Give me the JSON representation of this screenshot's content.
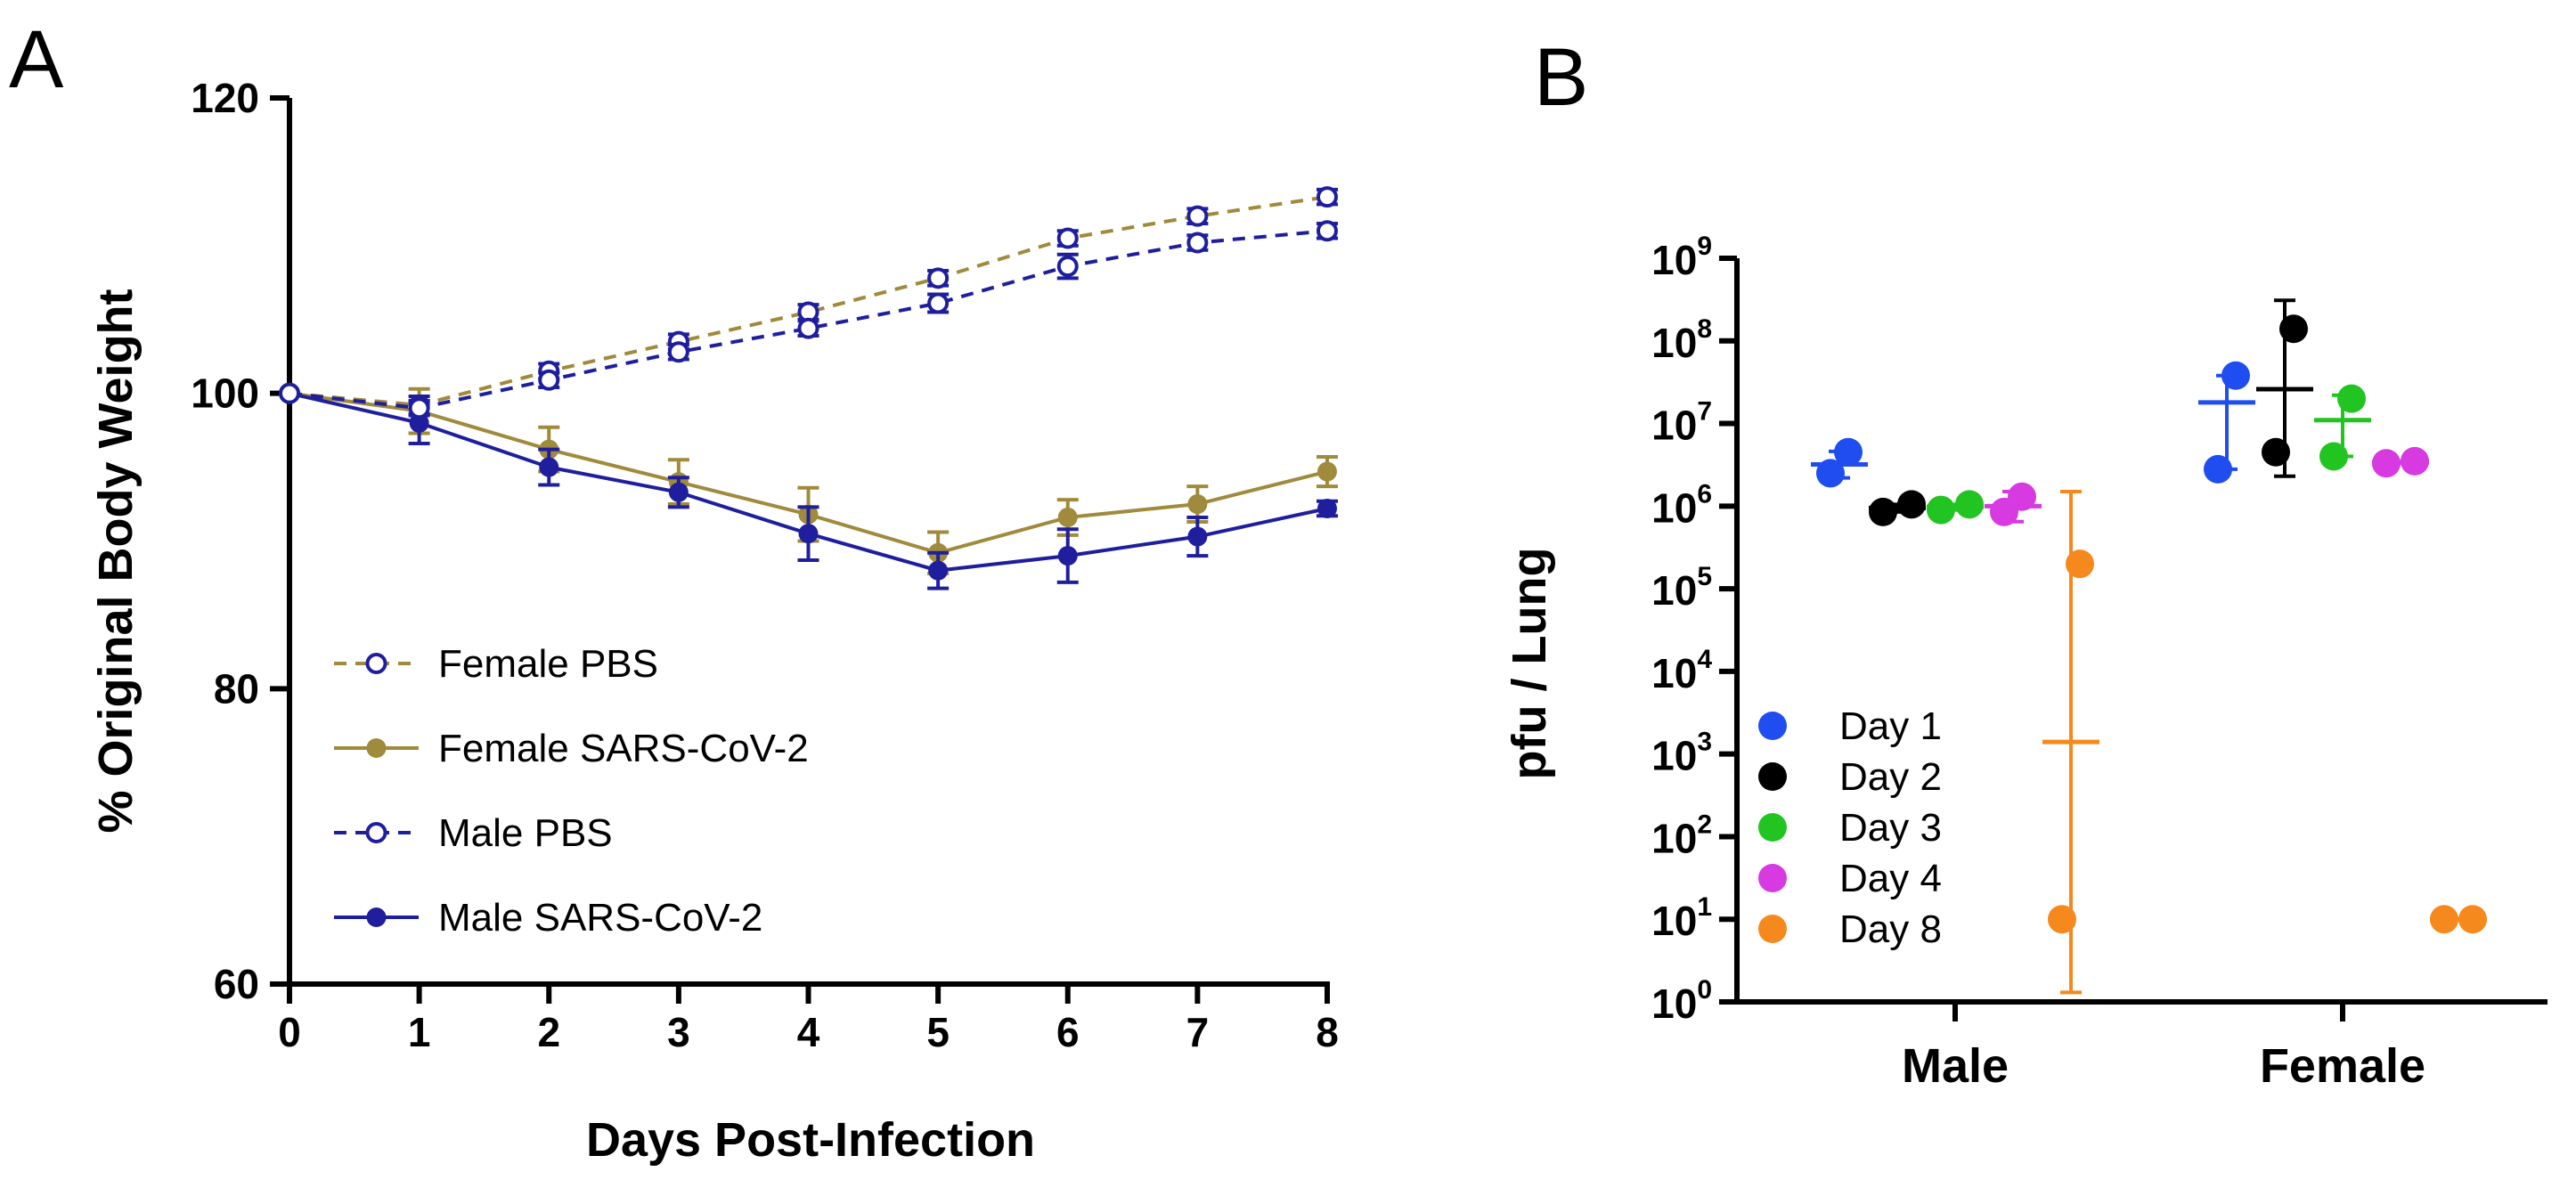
{
  "panels": {
    "a": {
      "letter": "A"
    },
    "b": {
      "letter": "B"
    }
  },
  "chart_data": [
    {
      "type": "line",
      "panel": "A",
      "title": "",
      "xlabel": "Days Post-Infection",
      "ylabel": "% Original Body Weight",
      "xlim": [
        0,
        8
      ],
      "ylim": [
        60,
        120
      ],
      "x_ticks": [
        0,
        1,
        2,
        3,
        4,
        5,
        6,
        7,
        8
      ],
      "y_ticks": [
        60,
        80,
        100,
        120
      ],
      "legend_position": "lower-left",
      "series": [
        {
          "name": "Female PBS",
          "color": "#a08a3c",
          "marker_color": "#1f1f9e",
          "style": "dashed",
          "marker": "open-circle",
          "x": [
            0,
            1,
            2,
            3,
            4,
            5,
            6,
            7,
            8
          ],
          "values": [
            100,
            99.2,
            101.5,
            103.5,
            105.5,
            107.8,
            110.5,
            112,
            113.3
          ],
          "errors": [
            0,
            0.6,
            0.5,
            0.5,
            0.5,
            0.5,
            0.5,
            0.5,
            0.5
          ]
        },
        {
          "name": "Female SARS-CoV-2",
          "color": "#a08a3c",
          "marker_color": "#a08a3c",
          "style": "solid",
          "marker": "filled-circle",
          "x": [
            0,
            1,
            2,
            3,
            4,
            5,
            6,
            7,
            8
          ],
          "values": [
            100,
            98.8,
            96.2,
            94,
            91.8,
            89.2,
            91.6,
            92.5,
            94.7
          ],
          "errors": [
            0,
            1.5,
            1.5,
            1.5,
            1.8,
            1.4,
            1.2,
            1.2,
            1.0
          ]
        },
        {
          "name": "Male PBS",
          "color": "#1f1f9e",
          "marker_color": "#1f1f9e",
          "style": "dashed",
          "marker": "open-circle",
          "x": [
            0,
            1,
            2,
            3,
            4,
            5,
            6,
            7,
            8
          ],
          "values": [
            100,
            99,
            100.9,
            102.8,
            104.4,
            106.1,
            108.6,
            110.2,
            111
          ],
          "errors": [
            0,
            0.5,
            0.5,
            0.5,
            0.5,
            0.6,
            0.8,
            0.5,
            0.5
          ]
        },
        {
          "name": "Male SARS-CoV-2",
          "color": "#1f1f9e",
          "marker_color": "#1f1f9e",
          "style": "solid",
          "marker": "filled-circle",
          "x": [
            0,
            1,
            2,
            3,
            4,
            5,
            6,
            7,
            8
          ],
          "values": [
            100,
            98,
            95,
            93.3,
            90.5,
            88,
            89,
            90.3,
            92.2
          ],
          "errors": [
            0,
            1.4,
            1.2,
            1.0,
            1.8,
            1.2,
            1.8,
            1.3,
            0.5
          ]
        }
      ]
    },
    {
      "type": "scatter",
      "panel": "B",
      "title": "",
      "xlabel": "",
      "ylabel": "pfu / Lung",
      "y_scale": "log10",
      "ylim_exp": [
        0,
        9
      ],
      "y_tick_base": "10",
      "y_tick_exponents": [
        0,
        1,
        2,
        3,
        4,
        5,
        6,
        7,
        8,
        9
      ],
      "categories": [
        "Male",
        "Female"
      ],
      "legend_position": "lower-left",
      "series": [
        {
          "name": "Day 1",
          "color": "#1f4df0",
          "points": [
            {
              "group": "Male",
              "values": [
                2500000.0,
                4500000.0
              ],
              "mean": 3200000.0,
              "err_low": 2200000.0,
              "err_high": 4600000.0
            },
            {
              "group": "Female",
              "values": [
                2800000.0,
                38000000.0
              ],
              "mean": 18000000.0,
              "err_low": 2800000.0,
              "err_high": 38000000.0
            }
          ]
        },
        {
          "name": "Day 2",
          "color": "#000000",
          "points": [
            {
              "group": "Male",
              "values": [
                850000.0,
                1050000.0
              ],
              "mean": 950000.0,
              "err_low": 850000.0,
              "err_high": 1050000.0
            },
            {
              "group": "Female",
              "values": [
                4500000.0,
                140000000.0
              ],
              "mean": 26000000.0,
              "err_low": 2300000.0,
              "err_high": 310000000.0
            }
          ]
        },
        {
          "name": "Day 3",
          "color": "#22c422",
          "points": [
            {
              "group": "Male",
              "values": [
                900000.0,
                1050000.0
              ],
              "mean": 980000.0,
              "err_low": 900000.0,
              "err_high": 1050000.0
            },
            {
              "group": "Female",
              "values": [
                4000000.0,
                20000000.0
              ],
              "mean": 11000000.0,
              "err_low": 4000000.0,
              "err_high": 22000000.0
            }
          ]
        },
        {
          "name": "Day 4",
          "color": "#d63ae0",
          "points": [
            {
              "group": "Male",
              "values": [
                850000.0,
                1300000.0
              ],
              "mean": 1000000.0,
              "err_low": 650000.0,
              "err_high": 1500000.0
            },
            {
              "group": "Female",
              "values": [
                3300000.0,
                3500000.0
              ],
              "mean": 3400000.0,
              "err_low": 3300000.0,
              "err_high": 3500000.0
            }
          ]
        },
        {
          "name": "Day 8",
          "color": "#f5891e",
          "points": [
            {
              "group": "Male",
              "values": [
                200000.0,
                10
              ],
              "mean": 1400.0,
              "err_low": 1.3,
              "err_high": 1500000.0
            },
            {
              "group": "Female",
              "values": [
                10,
                10
              ],
              "mean": 10,
              "err_low": 10,
              "err_high": 10
            }
          ]
        }
      ]
    }
  ]
}
